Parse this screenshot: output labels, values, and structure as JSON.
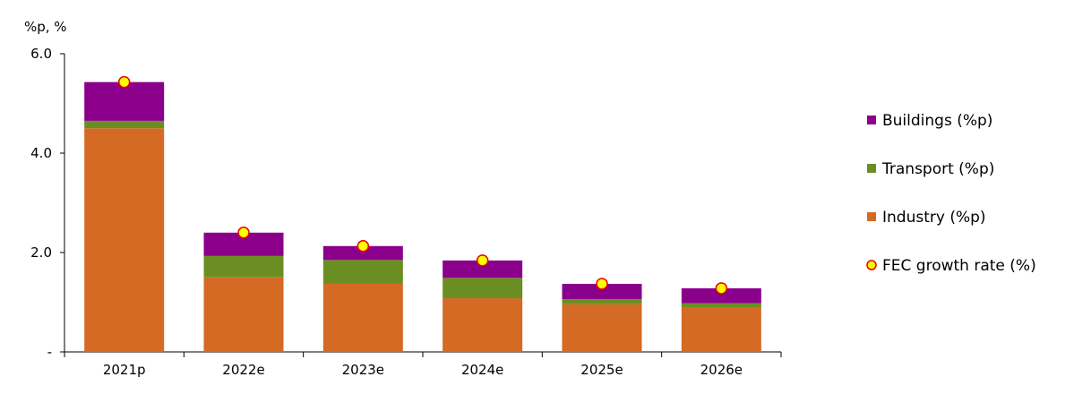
{
  "chart_data": {
    "type": "bar",
    "stacked": true,
    "ylabel": "%p, %",
    "ylim": [
      0,
      6.0
    ],
    "yticks": [
      {
        "value": 0,
        "label": "-"
      },
      {
        "value": 2.0,
        "label": "2.0"
      },
      {
        "value": 4.0,
        "label": "4.0"
      },
      {
        "value": 6.0,
        "label": "6.0"
      }
    ],
    "categories": [
      "2021p",
      "2022e",
      "2023e",
      "2024e",
      "2025e",
      "2026e"
    ],
    "series": [
      {
        "name": "Industry (%p)",
        "color": "#D46A24",
        "values": [
          4.5,
          1.5,
          1.37,
          1.08,
          0.96,
          0.9
        ]
      },
      {
        "name": "Transport (%p)",
        "color": "#6B8E23",
        "values": [
          0.15,
          0.43,
          0.48,
          0.41,
          0.1,
          0.08
        ]
      },
      {
        "name": "Buildings (%p)",
        "color": "#8B008B",
        "values": [
          0.78,
          0.47,
          0.28,
          0.35,
          0.31,
          0.3
        ]
      }
    ],
    "growth_rate": {
      "name": "FEC growth rate (%)",
      "color": "#FFFF00",
      "values": [
        5.43,
        2.4,
        2.13,
        1.84,
        1.37,
        1.28
      ]
    },
    "legend_position": "right",
    "grid": false
  }
}
